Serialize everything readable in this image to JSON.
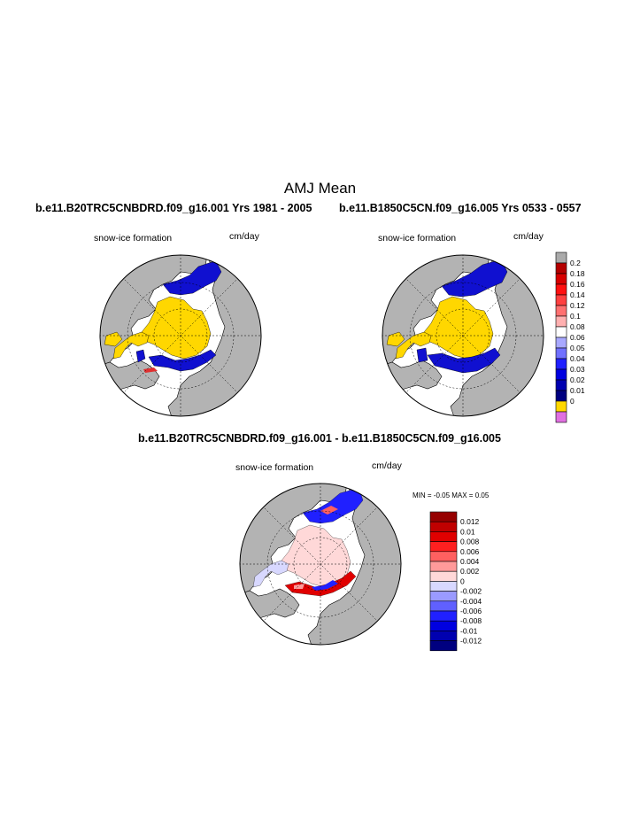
{
  "page": {
    "main_title": "AMJ Mean"
  },
  "panels": [
    {
      "title": "b.e11.B20TRC5CNBDRD.f09_g16.001  Yrs 1981 - 2005",
      "variable": "snow-ice formation",
      "units": "cm/day"
    },
    {
      "title": "b.e11.B1850C5CN.f09_g16.005  Yrs 0533 - 0557",
      "variable": "snow-ice formation",
      "units": "cm/day"
    },
    {
      "title": "b.e11.B20TRC5CNBDRD.f09_g16.001 - b.e11.B1850C5CN.f09_g16.005",
      "variable": "snow-ice formation",
      "units": "cm/day",
      "min_max": "MIN =  -0.05 MAX =   0.05"
    }
  ],
  "colorbar_top": {
    "labels": [
      "0.2",
      "0.18",
      "0.16",
      "0.14",
      "0.12",
      "0.1",
      "0.08",
      "0.06",
      "0.05",
      "0.04",
      "0.03",
      "0.02",
      "0.01",
      "0"
    ],
    "colors": [
      "#aaaaaa",
      "#b40000",
      "#d80000",
      "#ff1010",
      "#ff4040",
      "#ff7070",
      "#ffb0b0",
      "#ffffff",
      "#a8a8ff",
      "#7070ff",
      "#2020ff",
      "#0000e0",
      "#0000b0",
      "#000080",
      "#ffd800",
      "#e070e0"
    ]
  },
  "colorbar_diff": {
    "labels": [
      "0.012",
      "0.01",
      "0.008",
      "0.006",
      "0.004",
      "0.002",
      "0",
      "-0.002",
      "-0.004",
      "-0.006",
      "-0.008",
      "-0.01",
      "-0.012"
    ],
    "colors": [
      "#960000",
      "#c00000",
      "#e00000",
      "#ff2020",
      "#ff6060",
      "#ff9a9a",
      "#ffd8d8",
      "#d8d8ff",
      "#9a9aff",
      "#6060ff",
      "#2020ff",
      "#0000e0",
      "#0000b0",
      "#000080"
    ]
  },
  "colors": {
    "land": "#b3b3b3",
    "ocean": "#ffffff",
    "ice_zero": "#ffd700",
    "ice_high": "#1010d0"
  }
}
